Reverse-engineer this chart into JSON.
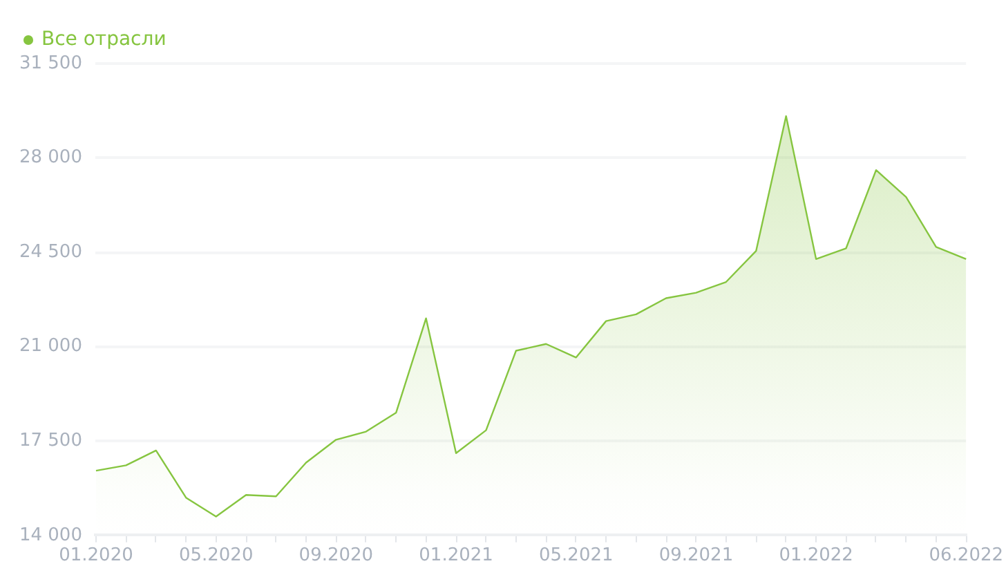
{
  "chart_data": {
    "type": "area",
    "categories": [
      "01.2020",
      null,
      null,
      null,
      "05.2020",
      null,
      null,
      null,
      "09.2020",
      null,
      null,
      null,
      "01.2021",
      null,
      null,
      null,
      "05.2021",
      null,
      null,
      null,
      "09.2021",
      null,
      null,
      null,
      "01.2022",
      null,
      null,
      null,
      null,
      "06.2022"
    ],
    "series": [
      {
        "name": "Все отрасли",
        "color": "#86c540",
        "values": [
          16400,
          16600,
          17150,
          15400,
          14700,
          15500,
          15450,
          16700,
          17550,
          17850,
          18550,
          22050,
          17050,
          17900,
          20850,
          21100,
          20600,
          21950,
          22200,
          22800,
          23000,
          23400,
          24550,
          29550,
          24250,
          24650,
          27550,
          26550,
          24700,
          24250
        ]
      }
    ],
    "ylim": [
      14000,
      31500
    ],
    "yticks": [
      {
        "value": 14000,
        "label": "14 000"
      },
      {
        "value": 17500,
        "label": "17 500"
      },
      {
        "value": 21000,
        "label": "21 000"
      },
      {
        "value": 24500,
        "label": "24 500"
      },
      {
        "value": 28000,
        "label": "28 000"
      },
      {
        "value": 31500,
        "label": "31 500"
      }
    ],
    "grid": "y",
    "legend": "top left",
    "marker": "none"
  }
}
